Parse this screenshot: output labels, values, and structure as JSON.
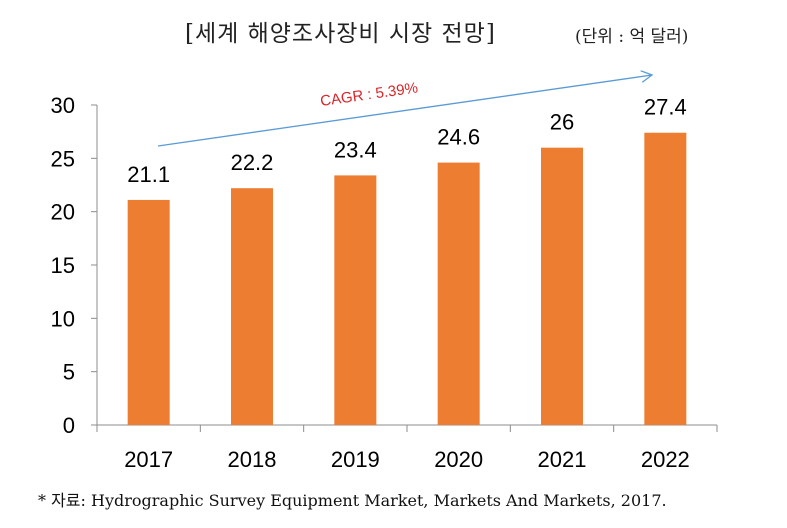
{
  "header": {
    "title": "[세계 해양조사장비 시장 전망]",
    "unit": "(단위 : 억 달러)"
  },
  "footer": {
    "source": "* 자료: Hydrographic Survey Equipment Market, Markets And Markets, 2017."
  },
  "annotation": {
    "text": "CAGR : 5.39%",
    "color": "#d9262a",
    "arrow_color": "#5b9bd5"
  },
  "chart_data": {
    "type": "bar",
    "categories": [
      "2017",
      "2018",
      "2019",
      "2020",
      "2021",
      "2022"
    ],
    "values": [
      21.1,
      22.2,
      23.4,
      24.6,
      26,
      27.4
    ],
    "value_labels": [
      "21.1",
      "22.2",
      "23.4",
      "24.6",
      "26",
      "27.4"
    ],
    "yticks": [
      0,
      5,
      10,
      15,
      20,
      25,
      30
    ],
    "ylim": [
      0,
      30
    ],
    "bar_color": "#ed7d31",
    "axis_color": "#8c8c8c",
    "grid": false,
    "legend": "none"
  }
}
